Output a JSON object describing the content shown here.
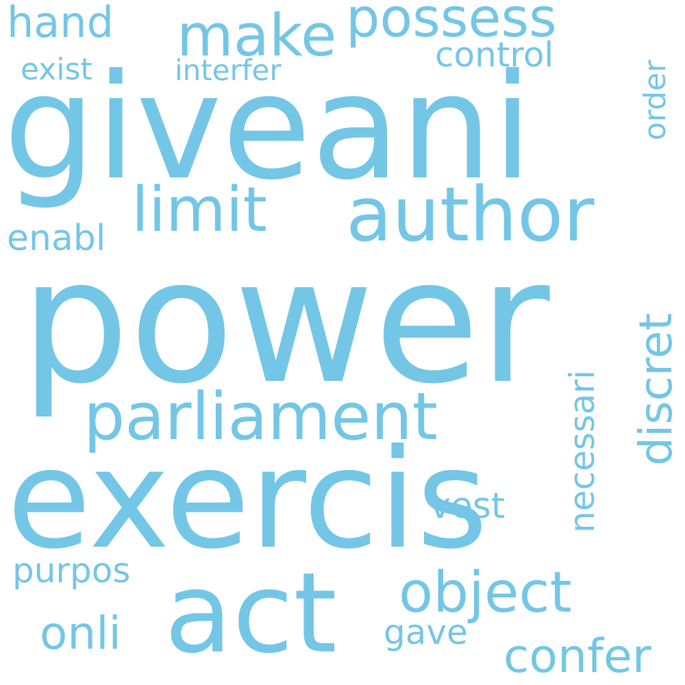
{
  "cloud": {
    "color": "#74c6e6",
    "background": "#ffffff",
    "words": {
      "power": "power",
      "giveani": "giveani",
      "exercis": "exercis",
      "act": "act",
      "author": "author",
      "parliament": "parliament",
      "limit": "limit",
      "make": "make",
      "possess": "possess",
      "hand": "hand",
      "object": "object",
      "discret": "discret",
      "necessari": "necessari",
      "confer": "confer",
      "control": "control",
      "enabl": "enabl",
      "exist": "exist",
      "interfer": "interfer",
      "order": "order",
      "purpos": "purpos",
      "onli": "onli",
      "gave": "gave",
      "vest": "vest"
    }
  }
}
